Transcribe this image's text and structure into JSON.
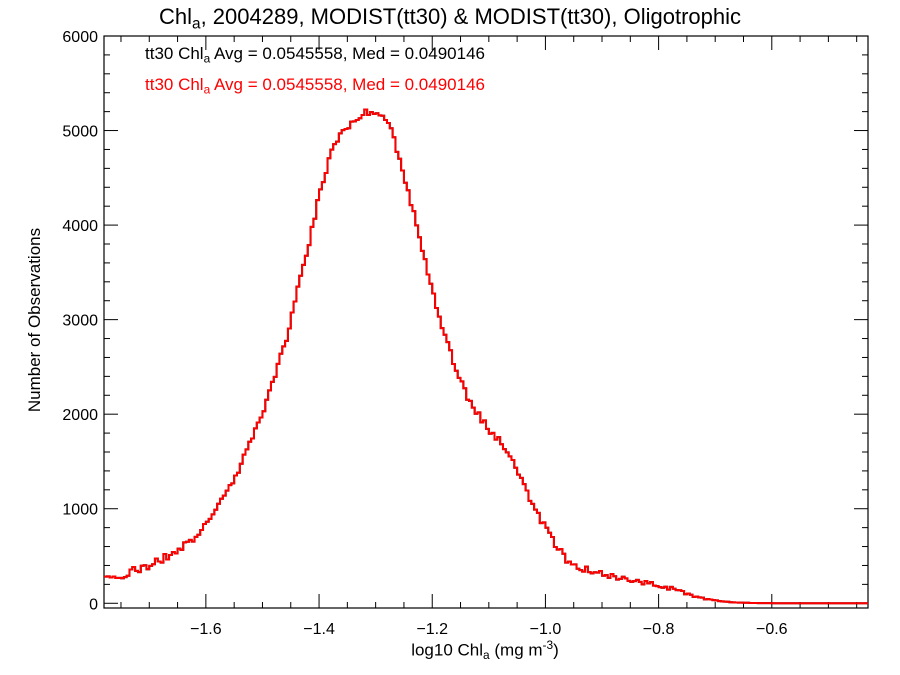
{
  "title": {
    "pre": "Chl",
    "sub": "a",
    "post": ", 2004289, MODIST(tt30) & MODIST(tt30), Oligotrophic"
  },
  "annotations": [
    {
      "pre": "tt30 Chl",
      "sub": "a",
      "post": " Avg = 0.0545558, Med = 0.0490146",
      "color": "#000000"
    },
    {
      "pre": "tt30 Chl",
      "sub": "a",
      "post": " Avg = 0.0545558, Med = 0.0490146",
      "color": "#ff0000"
    }
  ],
  "x_axis": {
    "pre": "log10 Chl",
    "sub": "a",
    "mid": " (mg m",
    "sup": "-3",
    "post": ")"
  },
  "y_axis": {
    "label": "Number of Observations"
  },
  "chart_data": {
    "type": "line",
    "xlim": [
      -1.78,
      -0.43
    ],
    "ylim": [
      -50,
      6000
    ],
    "x_ticks": [
      -1.6,
      -1.4,
      -1.2,
      -1.0,
      -0.8,
      -0.6
    ],
    "x_tick_labels": [
      "−1.6",
      "−1.4",
      "−1.2",
      "−1.0",
      "−0.8",
      "−0.6"
    ],
    "y_ticks": [
      0,
      1000,
      2000,
      3000,
      4000,
      5000,
      6000
    ],
    "y_tick_labels": [
      "0",
      "1000",
      "2000",
      "3000",
      "4000",
      "5000",
      "6000"
    ],
    "series": [
      {
        "color": "#000000",
        "bin_width": 0.005,
        "x": [
          -1.78,
          -1.75,
          -1.7,
          -1.65,
          -1.62,
          -1.6,
          -1.58,
          -1.56,
          -1.54,
          -1.52,
          -1.5,
          -1.48,
          -1.46,
          -1.44,
          -1.42,
          -1.4,
          -1.38,
          -1.36,
          -1.34,
          -1.33,
          -1.32,
          -1.31,
          -1.3,
          -1.29,
          -1.28,
          -1.27,
          -1.26,
          -1.24,
          -1.22,
          -1.2,
          -1.18,
          -1.16,
          -1.14,
          -1.12,
          -1.1,
          -1.08,
          -1.06,
          -1.04,
          -1.02,
          -1.0,
          -0.98,
          -0.96,
          -0.94,
          -0.92,
          -0.9,
          -0.88,
          -0.86,
          -0.84,
          -0.82,
          -0.8,
          -0.78,
          -0.76,
          -0.74,
          -0.72,
          -0.7,
          -0.68,
          -0.66,
          -0.64,
          -0.62,
          -0.6,
          -0.58,
          -0.55,
          -0.5,
          -0.45,
          -0.43
        ],
        "y": [
          250,
          300,
          400,
          550,
          700,
          850,
          1000,
          1200,
          1450,
          1700,
          2000,
          2350,
          2750,
          3250,
          3750,
          4300,
          4750,
          5000,
          5100,
          5150,
          5200,
          5200,
          5200,
          5150,
          5100,
          5000,
          4750,
          4300,
          3800,
          3300,
          2900,
          2500,
          2200,
          2000,
          1850,
          1700,
          1550,
          1300,
          1000,
          800,
          600,
          450,
          380,
          330,
          300,
          270,
          250,
          230,
          210,
          190,
          160,
          120,
          80,
          50,
          30,
          15,
          8,
          4,
          2,
          1,
          0,
          0,
          0,
          0,
          0
        ],
        "jitter_amp": 40
      },
      {
        "color": "#ff0000",
        "bin_width": 0.005,
        "x": [
          -1.78,
          -1.75,
          -1.7,
          -1.65,
          -1.62,
          -1.6,
          -1.58,
          -1.56,
          -1.54,
          -1.52,
          -1.5,
          -1.48,
          -1.46,
          -1.44,
          -1.42,
          -1.4,
          -1.38,
          -1.36,
          -1.34,
          -1.33,
          -1.32,
          -1.31,
          -1.3,
          -1.29,
          -1.28,
          -1.27,
          -1.26,
          -1.24,
          -1.22,
          -1.2,
          -1.18,
          -1.16,
          -1.14,
          -1.12,
          -1.1,
          -1.08,
          -1.06,
          -1.04,
          -1.02,
          -1.0,
          -0.98,
          -0.96,
          -0.94,
          -0.92,
          -0.9,
          -0.88,
          -0.86,
          -0.84,
          -0.82,
          -0.8,
          -0.78,
          -0.76,
          -0.74,
          -0.72,
          -0.7,
          -0.68,
          -0.66,
          -0.64,
          -0.62,
          -0.6,
          -0.58,
          -0.55,
          -0.5,
          -0.45,
          -0.43
        ],
        "y": [
          250,
          300,
          400,
          550,
          700,
          850,
          1000,
          1200,
          1450,
          1700,
          2000,
          2350,
          2750,
          3250,
          3750,
          4300,
          4750,
          5000,
          5100,
          5150,
          5200,
          5200,
          5200,
          5150,
          5100,
          5000,
          4750,
          4300,
          3800,
          3300,
          2900,
          2500,
          2200,
          2000,
          1850,
          1700,
          1550,
          1300,
          1000,
          800,
          600,
          450,
          380,
          330,
          300,
          270,
          250,
          230,
          210,
          190,
          160,
          120,
          80,
          50,
          30,
          15,
          8,
          4,
          2,
          1,
          0,
          0,
          0,
          0,
          0
        ],
        "jitter_amp": 40
      }
    ]
  }
}
